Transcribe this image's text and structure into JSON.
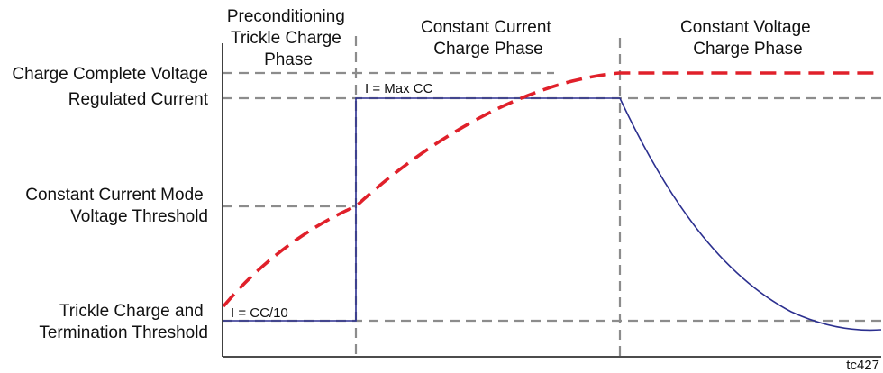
{
  "phases": [
    {
      "lines": [
        "Preconditioning",
        "Trickle Charge",
        "Phase"
      ]
    },
    {
      "lines": [
        "Constant Current",
        "Charge Phase"
      ]
    },
    {
      "lines": [
        "Constant  Voltage",
        "Charge Phase"
      ]
    }
  ],
  "levels": [
    {
      "lines": [
        "Charge Complete Voltage"
      ]
    },
    {
      "lines": [
        "Regulated Current"
      ]
    },
    {
      "lines": [
        "Constant Current Mode",
        "Voltage Threshold"
      ]
    },
    {
      "lines": [
        "Trickle Charge and",
        "Termination Threshold"
      ]
    }
  ],
  "annotations": {
    "max_cc": "I = Max CC",
    "trickle": "I = CC/10"
  },
  "figure_id": "tc427",
  "colors": {
    "voltage_curve": "#e0202a",
    "current_curve": "#2b2f8f",
    "guide_lines": "#8c8c8c",
    "axis": "#111111"
  }
}
